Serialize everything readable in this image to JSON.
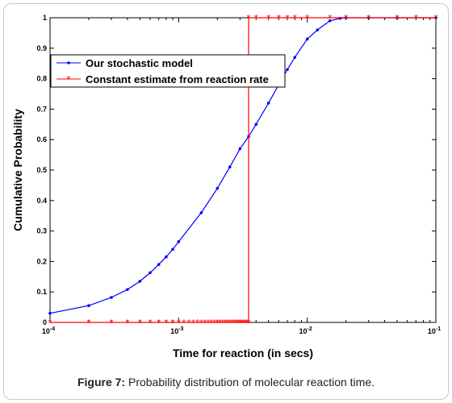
{
  "caption": {
    "label": "Figure 7:",
    "text": " Probability distribution of molecular reaction time."
  },
  "chart_data": {
    "type": "line",
    "xlabel": "Time for reaction (in secs)",
    "ylabel": "Cumulative Probability",
    "xscale": "log",
    "xlim": [
      0.0001,
      0.1
    ],
    "ylim": [
      0,
      1
    ],
    "xticks": [
      {
        "value": 0.0001,
        "base": "10",
        "exp": "-4"
      },
      {
        "value": 0.001,
        "base": "10",
        "exp": "-3"
      },
      {
        "value": 0.01,
        "base": "10",
        "exp": "-2"
      },
      {
        "value": 0.1,
        "base": "10",
        "exp": "-1"
      }
    ],
    "yticks": [
      "0",
      "0.1",
      "0.2",
      "0.3",
      "0.4",
      "0.5",
      "0.6",
      "0.7",
      "0.8",
      "0.9",
      "1"
    ],
    "legend_position": "upper-left",
    "series": [
      {
        "name": "Our stochastic model",
        "color": "#0000ff",
        "marker": "dot",
        "x": [
          0.0001,
          0.0002,
          0.0003,
          0.0004,
          0.0005,
          0.0006,
          0.0007,
          0.0008,
          0.0009,
          0.001,
          0.0015,
          0.002,
          0.0025,
          0.003,
          0.0035,
          0.004,
          0.005,
          0.006,
          0.007,
          0.008,
          0.01,
          0.012,
          0.015,
          0.018,
          0.02,
          0.03,
          0.05,
          0.1
        ],
        "y": [
          0.03,
          0.055,
          0.082,
          0.108,
          0.135,
          0.163,
          0.19,
          0.215,
          0.24,
          0.265,
          0.36,
          0.44,
          0.51,
          0.57,
          0.61,
          0.65,
          0.72,
          0.78,
          0.83,
          0.87,
          0.93,
          0.96,
          0.99,
          0.998,
          1.0,
          1.0,
          1.0,
          1.0
        ]
      },
      {
        "name": "Constant estimate from reaction rate",
        "color": "#ff0000",
        "marker": "star",
        "x": [
          0.0001,
          0.0002,
          0.0003,
          0.0004,
          0.0005,
          0.0006,
          0.0007,
          0.0008,
          0.0009,
          0.001,
          0.0011,
          0.0012,
          0.0013,
          0.0014,
          0.0015,
          0.0016,
          0.0017,
          0.0018,
          0.0019,
          0.002,
          0.0021,
          0.0022,
          0.0023,
          0.0024,
          0.0025,
          0.0026,
          0.0027,
          0.0028,
          0.0029,
          0.003,
          0.0031,
          0.0032,
          0.0033,
          0.0034,
          0.0035,
          0.0035,
          0.004,
          0.005,
          0.006,
          0.007,
          0.008,
          0.01,
          0.015,
          0.02,
          0.03,
          0.05,
          0.07,
          0.1
        ],
        "y": [
          0,
          0,
          0,
          0,
          0,
          0,
          0,
          0,
          0,
          0,
          0,
          0,
          0,
          0,
          0,
          0,
          0,
          0,
          0,
          0,
          0,
          0,
          0,
          0,
          0,
          0,
          0,
          0,
          0,
          0,
          0,
          0,
          0,
          0,
          0,
          1,
          1,
          1,
          1,
          1,
          1,
          1,
          1,
          1,
          1,
          1,
          1,
          1
        ]
      }
    ]
  }
}
